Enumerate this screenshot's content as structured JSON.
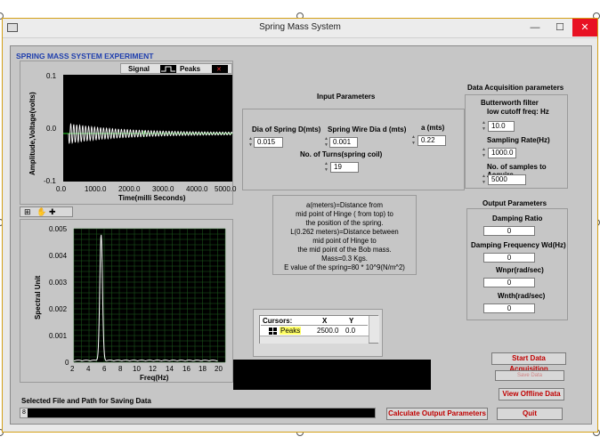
{
  "window": {
    "title": "Spring Mass System",
    "minimize": "—",
    "maximize": "☐",
    "close": "✕"
  },
  "header": {
    "experiment_title": "SPRING MASS SYSTEM EXPERIMENT"
  },
  "signal_plot": {
    "legend_signal": "Signal",
    "legend_peaks": "Peaks",
    "ylabel": "Amplitude,Voltage(volts)",
    "xlabel": "Time(milli Seconds)",
    "yticks": [
      "0.1",
      "0.0",
      "-0.1"
    ],
    "xticks": [
      "0.0",
      "1000.0",
      "2000.0",
      "3000.0",
      "4000.0",
      "5000.0"
    ]
  },
  "spectrum_plot": {
    "ylabel": "Spectral Unit",
    "xlabel": "Freq(Hz)",
    "yticks": [
      "0.005",
      "0.004",
      "0.003",
      "0.002",
      "0.001",
      "0"
    ],
    "xticks": [
      "2",
      "4",
      "6",
      "8",
      "10",
      "12",
      "14",
      "16",
      "18",
      "20"
    ]
  },
  "input_parameters": {
    "title": "Input Parameters",
    "dia_spring_label": "Dia of Spring D(mts)",
    "dia_spring_value": "0.015",
    "wire_dia_label": "Spring Wire Dia d (mts)",
    "wire_dia_value": "0.001",
    "a_label": "a (mts)",
    "a_value": "0.22",
    "turns_label": "No. of Turns(spring coil)",
    "turns_value": "19"
  },
  "daq_parameters": {
    "title": "Data Acquisition parameters",
    "filter_label_1": "Butterworth filter",
    "filter_label_2": "low cutoff freq: Hz",
    "cutoff_value": "10.0",
    "sampling_label": "Sampling Rate(Hz)",
    "sampling_value": "1000.0",
    "samples_label": "No. of samples to Acquire",
    "samples_value": "5000"
  },
  "info_box": {
    "lines": [
      "a(meters)=Distance from",
      "mid point of Hinge ( from top) to",
      "the position of the spring.",
      "L(0.262 meters)=Distance between",
      "mid point of Hinge to",
      "the mid point  of the Bob mass.",
      "Mass=0.3 Kgs.",
      "E value of the spring=80 * 10^9(N/m^2)"
    ]
  },
  "output_parameters": {
    "title": "Output Parameters",
    "damping_ratio_label": "Damping Ratio",
    "damping_ratio_value": "0",
    "damping_freq_label": "Damping Frequency Wd(Hz)",
    "damping_freq_value": "0",
    "wnpr_label": "Wnpr(rad/sec)",
    "wnpr_value": "0",
    "wnth_label": "Wnth(rad/sec)",
    "wnth_value": "0"
  },
  "cursors": {
    "header_name": "Cursors:",
    "header_x": "X",
    "header_y": "Y",
    "row_name": "Peaks",
    "row_x": "2500.0",
    "row_y": "0.0"
  },
  "buttons": {
    "start_daq": "Start Data Acquisition",
    "save_data": "Save Data",
    "view_offline": "View Offline Data",
    "calculate": "Calculate Output  Parameters",
    "quit": "Quit"
  },
  "save_path": {
    "label": "Selected File and Path for Saving Data",
    "prefix": "8",
    "value": ""
  },
  "colors": {
    "panel": "#c6c6c6",
    "plot_bg": "#000000",
    "grid": "#1f5f1f",
    "signal": "#ffffff",
    "peaks": "#27d327",
    "title_blue": "#1f3fae",
    "button_red": "#c00000"
  }
}
